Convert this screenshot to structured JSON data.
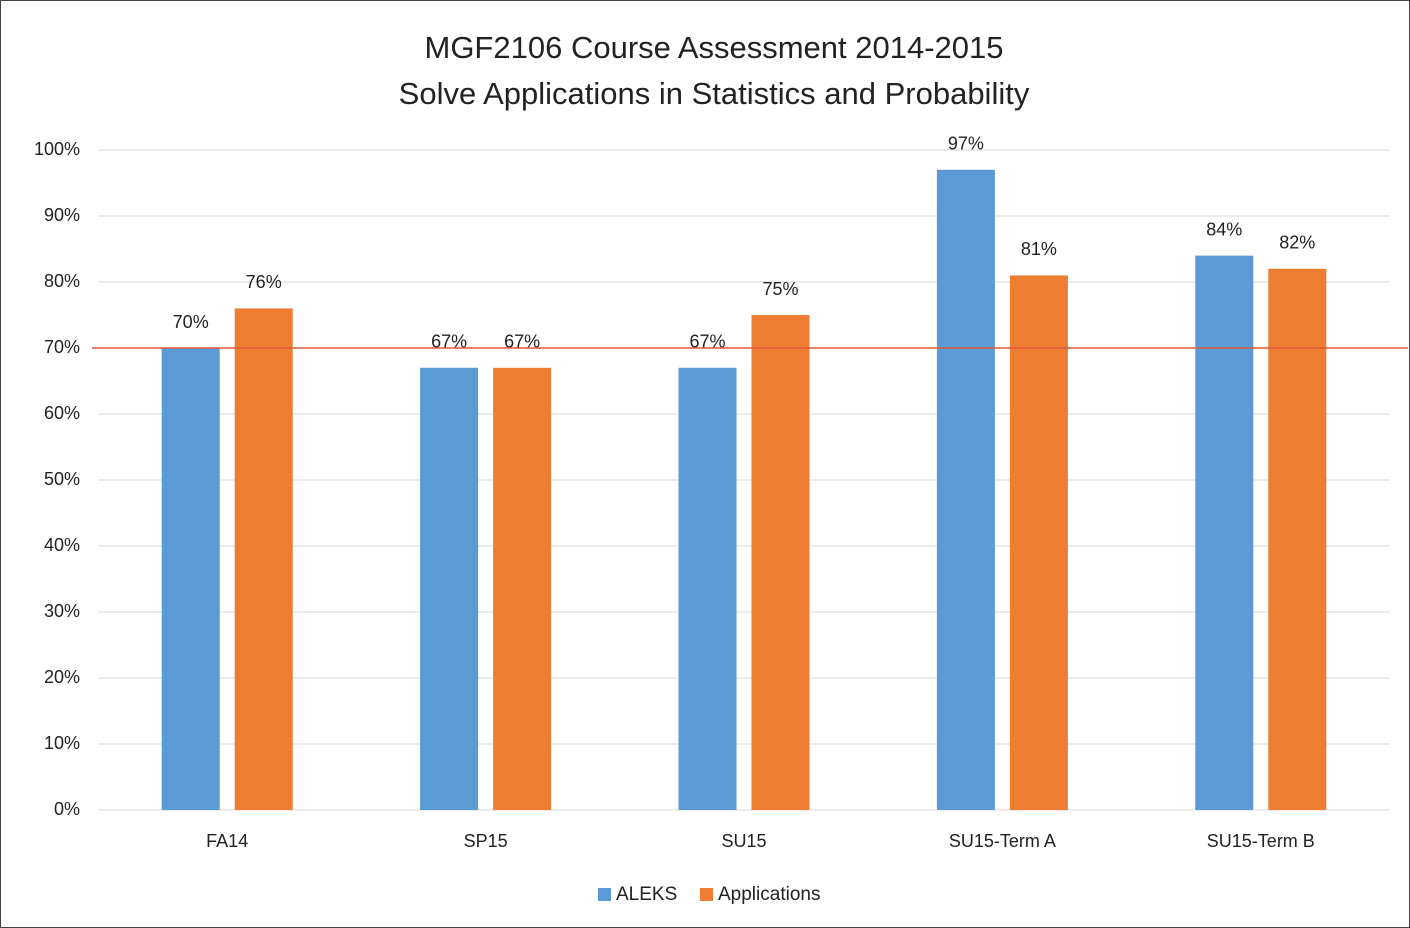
{
  "chart_data": {
    "type": "bar",
    "title": "MGF2106 Course Assessment 2014-2015",
    "subtitle": "Solve Applications in Statistics and Probability",
    "categories": [
      "FA14",
      "SP15",
      "SU15",
      "SU15-Term A",
      "SU15-Term B"
    ],
    "series": [
      {
        "name": "ALEKS",
        "color": "#5b9bd5",
        "values": [
          70,
          67,
          67,
          97,
          84
        ],
        "value_labels": [
          "70%",
          "67%",
          "67%",
          "97%",
          "84%"
        ]
      },
      {
        "name": "Applications",
        "color": "#ed7d31",
        "values": [
          76,
          67,
          75,
          81,
          82
        ],
        "value_labels": [
          "76%",
          "67%",
          "75%",
          "81%",
          "82%"
        ]
      }
    ],
    "reference_line": {
      "value": 70,
      "color": "#e0573a"
    },
    "ylim": [
      0,
      100
    ],
    "yticks": [
      {
        "value": 0,
        "label": "0%"
      },
      {
        "value": 10,
        "label": "10%"
      },
      {
        "value": 20,
        "label": "20%"
      },
      {
        "value": 30,
        "label": "30%"
      },
      {
        "value": 40,
        "label": "40%"
      },
      {
        "value": 50,
        "label": "50%"
      },
      {
        "value": 60,
        "label": "60%"
      },
      {
        "value": 70,
        "label": "70%"
      },
      {
        "value": 80,
        "label": "80%"
      },
      {
        "value": 90,
        "label": "90%"
      },
      {
        "value": 100,
        "label": "100%"
      }
    ],
    "grid": true,
    "legend": "bottom"
  }
}
